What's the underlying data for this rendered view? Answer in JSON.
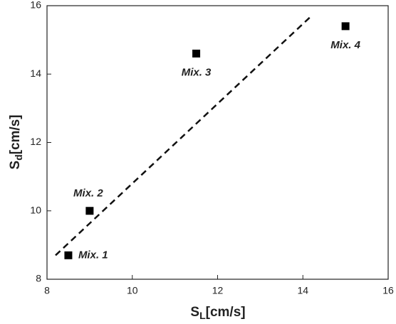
{
  "chart_data": {
    "type": "scatter",
    "x_label": {
      "symbol": "S",
      "subscript": "L",
      "unit": "[cm/s]"
    },
    "y_label": {
      "symbol": "S",
      "subscript": "d",
      "unit": "[cm/s]"
    },
    "x": [
      8.5,
      9.0,
      11.5,
      15.0
    ],
    "values": [
      8.7,
      10.0,
      14.6,
      15.4
    ],
    "labels": [
      "Mix. 1",
      "Mix. 2",
      "Mix. 3",
      "Mix. 4"
    ],
    "color": "#000000",
    "fit_line": {
      "x": [
        8.2,
        14.2
      ],
      "y": [
        8.7,
        15.7
      ]
    },
    "xlim": [
      8,
      16
    ],
    "xticks": [
      8,
      10,
      12,
      14,
      16
    ],
    "ylim": [
      8,
      16
    ],
    "yticks": [
      8,
      10,
      12,
      14,
      16
    ]
  }
}
